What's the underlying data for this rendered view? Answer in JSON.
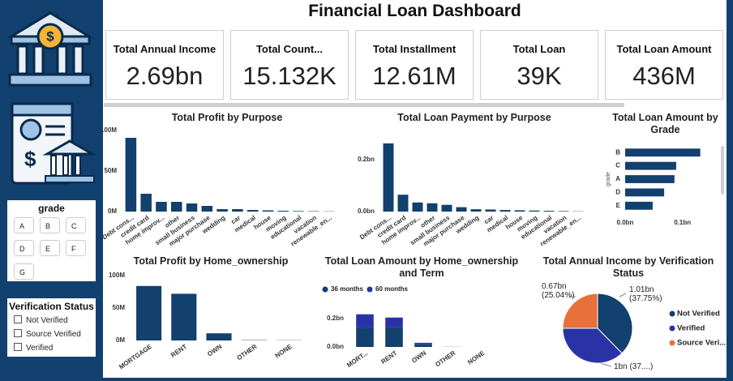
{
  "title": "Financial Loan Dashboard",
  "slicers": {
    "grade": {
      "title": "grade",
      "options": [
        "A",
        "B",
        "C",
        "D",
        "E",
        "F",
        "G"
      ]
    },
    "verification": {
      "title": "Verification Status",
      "options": [
        "Not Verified",
        "Source Verified",
        "Verified"
      ]
    }
  },
  "kpis": [
    {
      "label": "Total Annual Income",
      "value": "2.69bn"
    },
    {
      "label": "Total Count...",
      "value": "15.132K"
    },
    {
      "label": "Total Installment",
      "value": "12.61M"
    },
    {
      "label": "Total Loan",
      "value": "39K"
    },
    {
      "label": "Total Loan Amount",
      "value": "436M"
    }
  ],
  "chart_data": [
    {
      "type": "bar",
      "title": "Total Profit by Purpose",
      "color": "#12406f",
      "categories": [
        "Debt cons...",
        "credit card",
        "home improv...",
        "other",
        "small business",
        "major purchase",
        "wedding",
        "car",
        "medical",
        "house",
        "moving",
        "educational",
        "vacation",
        "renewable_en..."
      ],
      "values": [
        91,
        22,
        12,
        12,
        10,
        7,
        3,
        3,
        2,
        1.5,
        1,
        0.7,
        0.5,
        0.3
      ],
      "ylim": [
        0,
        100
      ],
      "yticks": [
        {
          "value": 0,
          "label": "0M"
        },
        {
          "value": 50,
          "label": "50M"
        },
        {
          "value": 100,
          "label": "100M"
        }
      ]
    },
    {
      "type": "bar",
      "title": "Total Loan Payment by Purpose",
      "color": "#12406f",
      "categories": [
        "Debt cons...",
        "credit card",
        "home improv...",
        "other",
        "small business",
        "major purchase",
        "wedding",
        "car",
        "medical",
        "house",
        "moving",
        "educational",
        "vacation",
        "renewable_en..."
      ],
      "values": [
        0.263,
        0.065,
        0.035,
        0.032,
        0.026,
        0.017,
        0.009,
        0.008,
        0.006,
        0.005,
        0.004,
        0.003,
        0.002,
        0.001
      ],
      "ylim": [
        0,
        0.3
      ],
      "yticks": [
        {
          "value": 0,
          "label": "0.0bn"
        },
        {
          "value": 0.2,
          "label": "0.2bn"
        }
      ]
    },
    {
      "type": "hbar",
      "title": "Total Loan Amount by Grade",
      "color": "#12406f",
      "ylabel": "grade",
      "categories": [
        "B",
        "C",
        "A",
        "D",
        "E"
      ],
      "values": [
        0.131,
        0.089,
        0.086,
        0.068,
        0.048
      ],
      "xlim": [
        0,
        0.14
      ],
      "xticks": [
        {
          "value": 0,
          "label": "0.0bn"
        },
        {
          "value": 0.1,
          "label": "0.1bn"
        }
      ]
    },
    {
      "type": "bar",
      "title": "Total Profit by Home_ownership",
      "color": "#12406f",
      "categories": [
        "MORTGAGE",
        "RENT",
        "OWN",
        "OTHER",
        "NONE"
      ],
      "values": [
        84,
        72,
        11,
        0.5,
        0.3
      ],
      "ylim": [
        0,
        100
      ],
      "yticks": [
        {
          "value": 0,
          "label": "0M"
        },
        {
          "value": 50,
          "label": "50M"
        },
        {
          "value": 100,
          "label": "100M"
        }
      ]
    },
    {
      "type": "stacked_bar",
      "title": "Total Loan Amount by Home_ownership and Term",
      "categories": [
        "MORT...",
        "RENT",
        "OWN",
        "OTHER",
        "NONE"
      ],
      "series": [
        {
          "name": "36 months",
          "color": "#12406f",
          "values": [
            0.131,
            0.137,
            0.018,
            0.001,
            0
          ]
        },
        {
          "name": "60 months",
          "color": "#2a33a6",
          "values": [
            0.098,
            0.069,
            0.011,
            0,
            0
          ]
        }
      ],
      "ylim": [
        0,
        0.25
      ],
      "yticks": [
        {
          "value": 0,
          "label": "0.0bn"
        },
        {
          "value": 0.2,
          "label": "0.2bn"
        }
      ]
    },
    {
      "type": "pie",
      "title": "Total Annual Income by Verification Status",
      "categories": [
        "Not Verified",
        "Verified",
        "Source Veri..."
      ],
      "colors": [
        "#12406f",
        "#2a33a6",
        "#e8703a"
      ],
      "values": [
        1.01,
        1,
        0.67
      ],
      "value_labels": [
        "1.01bn (37.75%)",
        "1bn (37....)",
        "0.67bn (25.04%)"
      ]
    }
  ]
}
